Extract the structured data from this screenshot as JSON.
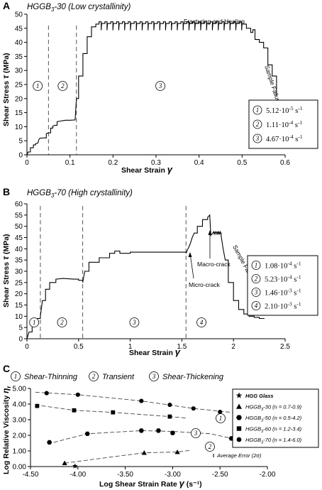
{
  "chart_data": [
    {
      "panel": "A",
      "type": "line",
      "title": "HGGB3-30 (Low crystallinity)",
      "title_main": "HGGB",
      "title_sub": "3",
      "title_rest": "-30 (Low crystallinity)",
      "xlabel": "Shear Strain γ",
      "ylabel": "Shear Stress τ (MPa)",
      "xlim": [
        0,
        0.6
      ],
      "ylim": [
        0,
        50
      ],
      "xticks": [
        "0",
        "0.1",
        "0.2",
        "0.3",
        "0.4",
        "0.5",
        "0.6"
      ],
      "yticks": [
        "0",
        "5",
        "10",
        "15",
        "20",
        "25",
        "30",
        "35",
        "40",
        "45",
        "50"
      ],
      "grid": false,
      "regime_boundaries": [
        0.05,
        0.115
      ],
      "regime_labels": [
        "1",
        "2",
        "3"
      ],
      "annotations": [
        "Fracturing and Healing",
        "Sample Failure"
      ],
      "legend": [
        {
          "num": "1",
          "mant": "5.12·10",
          "exp": "-5",
          "unit": " s",
          "uexp": "-1"
        },
        {
          "num": "2",
          "mant": "1.11·10",
          "exp": "-4",
          "unit": " s",
          "uexp": "-1"
        },
        {
          "num": "3",
          "mant": "4.67·10",
          "exp": "-4",
          "unit": " s",
          "uexp": "-1"
        }
      ],
      "x": [
        0,
        0.003,
        0.008,
        0.015,
        0.02,
        0.025,
        0.028,
        0.03,
        0.04,
        0.045,
        0.05,
        0.055,
        0.06,
        0.065,
        0.07,
        0.078,
        0.085,
        0.09,
        0.1,
        0.112,
        0.115,
        0.12,
        0.13,
        0.14,
        0.15,
        0.16,
        0.5,
        0.51,
        0.52,
        0.525,
        0.53,
        0.54,
        0.55,
        0.56,
        0.57,
        0.58
      ],
      "y": [
        0,
        1,
        2.5,
        3.5,
        4,
        4.1,
        5.5,
        5.9,
        6,
        7.5,
        7.8,
        9.5,
        10.2,
        10.5,
        11.8,
        12,
        12.2,
        12.3,
        12.3,
        12.4,
        20,
        28,
        36,
        42,
        45.5,
        46.5,
        46.5,
        45,
        43.5,
        44.5,
        41,
        40,
        38,
        32,
        28,
        21
      ],
      "oscillation": {
        "from": 0.16,
        "to": 0.5,
        "count": 25,
        "low": 44.3,
        "high": 47.3
      }
    },
    {
      "panel": "B",
      "type": "line",
      "title": "HGGB3-70 (High crystallinity)",
      "title_main": "HGGB",
      "title_sub": "3",
      "title_rest": "-70 (High crystallinity)",
      "xlabel": "Shear Strain γ",
      "ylabel": "Shear Stress τ (MPa)",
      "xlim": [
        0,
        2.5
      ],
      "ylim": [
        0,
        60
      ],
      "xticks": [
        "0",
        "0.5",
        "1",
        "1.5",
        "2",
        "2.5"
      ],
      "yticks": [
        "0",
        "5",
        "10",
        "15",
        "20",
        "25",
        "30",
        "35",
        "40",
        "45",
        "50",
        "55",
        "60"
      ],
      "grid": false,
      "regime_boundaries": [
        0.13,
        0.54,
        1.54
      ],
      "regime_labels": [
        "1",
        "2",
        "3",
        "4"
      ],
      "annotations": [
        "Micro-crack",
        "Macro-crack",
        "Sample Failure"
      ],
      "legend": [
        {
          "num": "1",
          "mant": "1.08·10",
          "exp": "-4",
          "unit": " s",
          "uexp": "-1"
        },
        {
          "num": "2",
          "mant": "5.23·10",
          "exp": "-4",
          "unit": " s",
          "uexp": "-1"
        },
        {
          "num": "3",
          "mant": "1.46·10",
          "exp": "-3",
          "unit": " s",
          "uexp": "-1"
        },
        {
          "num": "4",
          "mant": "2.10·10",
          "exp": "-3",
          "unit": " s",
          "uexp": "-1"
        }
      ],
      "x": [
        0,
        0.02,
        0.05,
        0.08,
        0.1,
        0.13,
        0.15,
        0.18,
        0.22,
        0.28,
        0.35,
        0.45,
        0.5,
        0.54,
        0.56,
        0.6,
        0.7,
        0.8,
        0.85,
        0.9,
        1.0,
        1.2,
        1.5,
        1.54,
        1.56,
        1.58,
        1.6,
        1.62,
        1.65,
        1.7,
        1.75,
        1.77,
        1.78,
        1.8,
        1.85,
        1.88,
        1.9,
        1.92,
        1.95,
        2.0,
        2.05,
        2.1,
        2.15,
        2.2,
        2.25,
        2.3
      ],
      "y": [
        0,
        3,
        6,
        8,
        9,
        10,
        17,
        22,
        25,
        26.5,
        26.8,
        26.5,
        26,
        25,
        30,
        34,
        36,
        38,
        39,
        38,
        38.5,
        38.5,
        38.5,
        38,
        40,
        42,
        45,
        47,
        50,
        53,
        54,
        55,
        46,
        47,
        47,
        46,
        40,
        35,
        25,
        17,
        13,
        11,
        10,
        9.5,
        9,
        9
      ],
      "oscillation": {
        "from": 1.8,
        "to": 1.88,
        "count": 5,
        "low": 46.3,
        "high": 47.6
      }
    },
    {
      "panel": "C",
      "type": "scatter",
      "xlabel": "Log Shear Strain Rate γ (s⁻¹)",
      "ylabel": "Log Relative Viscosity ηr",
      "xlim": [
        -4.5,
        -2.0
      ],
      "ylim": [
        0,
        5
      ],
      "xticks": [
        "-4.50",
        "-4.00",
        "-3.50",
        "-3.00",
        "-2.50",
        "-2.00"
      ],
      "yticks": [
        "0.00",
        "1.00",
        "2.00",
        "3.00",
        "4.00",
        "5.00"
      ],
      "grid": false,
      "regimes": [
        {
          "num": "1",
          "label": "Shear-Thinning"
        },
        {
          "num": "2",
          "label": "Transient"
        },
        {
          "num": "3",
          "label": "Shear-Thickening"
        }
      ],
      "error_note": "Average Error (2σ)",
      "series": [
        {
          "name": "HGG Glass",
          "marker": "star",
          "x": [
            -4.03
          ],
          "y": [
            0.03
          ]
        },
        {
          "name": "HGGB3-30 (n = 0.7-0.9)",
          "marker": "triangle",
          "x": [
            -4.14,
            -3.3,
            -2.95
          ],
          "y": [
            0.22,
            0.88,
            0.93
          ]
        },
        {
          "name": "HGGB3-50 (n = 0.5-4.2)",
          "marker": "hexagon",
          "x": [
            -4.3,
            -3.9,
            -3.33,
            -3.15,
            -3.0,
            -2.38
          ],
          "y": [
            1.55,
            2.1,
            2.3,
            2.3,
            2.15,
            1.8
          ]
        },
        {
          "name": "HGGB3-60 (n = 1.2-3.4)",
          "marker": "square",
          "x": [
            -4.43,
            -4.04,
            -3.63,
            -3.03
          ],
          "y": [
            3.88,
            3.6,
            3.47,
            3.2
          ]
        },
        {
          "name": "HGGB3-70 (n = 1.4-6.0)",
          "marker": "circle",
          "x": [
            -4.33,
            -4.0,
            -3.33,
            -3.03,
            -2.78,
            -2.5
          ],
          "y": [
            4.7,
            4.6,
            4.2,
            3.95,
            3.72,
            3.5
          ]
        }
      ],
      "legend_series": [
        {
          "marker": "star",
          "main": "HGG Glass",
          "sub": "",
          "rest": ""
        },
        {
          "marker": "triangle",
          "main": "HGGB",
          "sub": "3",
          "rest": "-30 (n = 0.7-0.9)"
        },
        {
          "marker": "hexagon",
          "main": "HGGB",
          "sub": "3",
          "rest": "-50 (n = 0.5-4.2)"
        },
        {
          "marker": "square",
          "main": "HGGB",
          "sub": "3",
          "rest": "-60 (n = 1.2-3.4)"
        },
        {
          "marker": "circle",
          "main": "HGGB",
          "sub": "3",
          "rest": "-70 (n = 1.4-6.0)"
        }
      ],
      "fit_curves": [
        {
          "num": "1",
          "x": [
            -4.45,
            -4.0,
            -3.33,
            -2.78,
            -2.3
          ],
          "y": [
            4.76,
            4.6,
            4.2,
            3.72,
            3.42
          ]
        },
        {
          "num": "1",
          "x": [
            -4.45,
            -4.04,
            -3.63,
            -3.03,
            -2.85
          ],
          "y": [
            3.95,
            3.6,
            3.47,
            3.2,
            3.1
          ]
        },
        {
          "num": "2",
          "x": [
            -4.32,
            -3.9,
            -3.33,
            -3.0,
            -2.6,
            -2.37
          ],
          "y": [
            1.45,
            2.1,
            2.3,
            2.25,
            2.1,
            1.8
          ]
        },
        {
          "num": "3",
          "x": [
            -4.14,
            -3.6,
            -3.3,
            -2.95,
            -2.8
          ],
          "y": [
            0.22,
            0.65,
            0.88,
            0.93,
            1.05
          ]
        }
      ]
    }
  ],
  "panels": {
    "a": {
      "letter": "A",
      "title_main": "HGGB",
      "title_sub": "3",
      "title_rest": "-30 (Low crystallinity)"
    },
    "b": {
      "letter": "B",
      "title_main": "HGGB",
      "title_sub": "3",
      "title_rest": "-70 (High crystallinity)"
    },
    "c": {
      "letter": "C"
    }
  },
  "axis_labels": {
    "a_x": "Shear Strain ",
    "a_x_sym": "γ",
    "a_y": "Shear Stress ",
    "a_y_sym": "τ",
    "a_y_unit": " (MPa)",
    "b_x": "Shear Strain ",
    "b_x_sym": "γ",
    "b_y": "Shear Stress ",
    "b_y_sym": "τ",
    "b_y_unit": " (MPa)",
    "c_x": "Log Shear Strain Rate ",
    "c_x_sym": "γ",
    "c_x_unit": " (s⁻¹)",
    "c_y": "Log Relative Viscosity ",
    "c_y_sym": "η",
    "c_y_sub": "r"
  },
  "annotations": {
    "fracturing": "Fracturing and Healing",
    "failure_a": "Sample Failure",
    "micro": "Micro-crack",
    "macro": "Macro-crack",
    "failure_b": "Sample Failure",
    "error": "Average Error (2σ)",
    "error_glyph": "I"
  },
  "colors": {
    "line": "#000000",
    "dash": "#444444",
    "background": "#ffffff"
  }
}
